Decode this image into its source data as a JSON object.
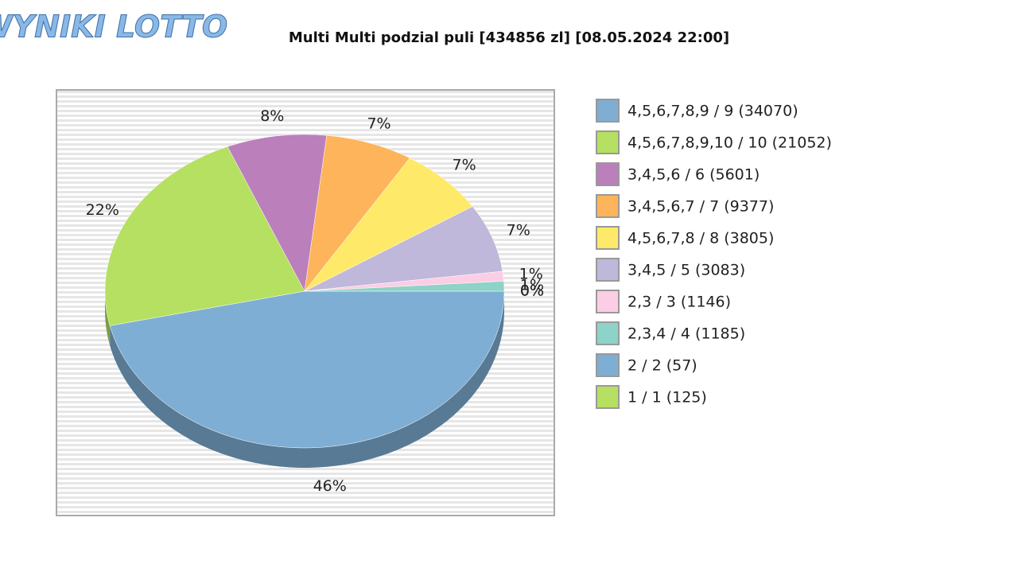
{
  "logo": "WYNIKI LOTTO",
  "chart_data": {
    "type": "pie",
    "title": "Multi Multi podzial puli [434856 zl] [08.05.2024 22:00]",
    "categories": [
      "4,5,6,7,8,9 / 9 (34070)",
      "4,5,6,7,8,9,10 / 10 (21052)",
      "3,4,5,6 / 6 (5601)",
      "3,4,5,6,7 / 7 (9377)",
      "4,5,6,7,8 / 8 (3805)",
      "3,4,5 / 5 (3083)",
      "2,3 / 3 (1146)",
      "2,3,4 / 4 (1185)",
      "2 / 2 (57)",
      "1 / 1 (125)"
    ],
    "values": [
      46,
      22,
      8,
      7,
      7,
      7,
      1,
      1,
      0,
      0
    ],
    "value_labels": [
      "46%",
      "22%",
      "8%",
      "7%",
      "7%",
      "7%",
      "1%",
      "1%",
      "0%",
      "0%"
    ],
    "colors": [
      "#7eaed4",
      "#b5e061",
      "#bb7fbc",
      "#feb45a",
      "#feea68",
      "#bfb8da",
      "#fccde5",
      "#8dd3c7",
      "#7eaed4",
      "#b5e061"
    ]
  }
}
